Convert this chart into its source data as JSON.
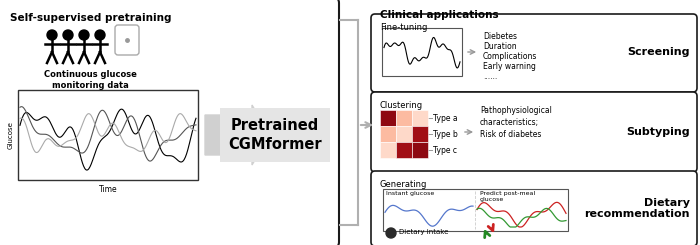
{
  "title_left": "Self-supervised pretraining",
  "title_right": "Clinical applications",
  "pretrained_label": "Pretrained\nCGMformer",
  "cgm_label": "Continuous glucose\nmonitoring data",
  "glucose_label": "Glucose",
  "time_label": "Time",
  "finetuning_label": "Fine-tuning",
  "clustering_label": "Clustering",
  "generating_label": "Generating",
  "screening_label": "Screening",
  "subtyping_label": "Subtyping",
  "dietary_label": "Dietary\nrecommendation",
  "screening_items": [
    "Diebetes",
    "Duration",
    "Complications",
    "Early warning",
    "......"
  ],
  "subtyping_items": [
    "Pathophysiological",
    "characteristics;",
    "Risk of diabetes"
  ],
  "type_labels": [
    "Type a",
    "Type b",
    "Type c"
  ],
  "instant_glucose_label": "Instant glucose",
  "predict_label": "Predict post-meal\nglucose",
  "dietary_intake_label": "Dietary intake",
  "bg_color": "#ffffff",
  "arrow_color": "#d0d0d0",
  "border_color": "#1a1a1a",
  "pretrained_box_color": "#e5e5e5",
  "blue_line": "#5577cc",
  "red_line": "#cc2222",
  "green_line": "#339933"
}
